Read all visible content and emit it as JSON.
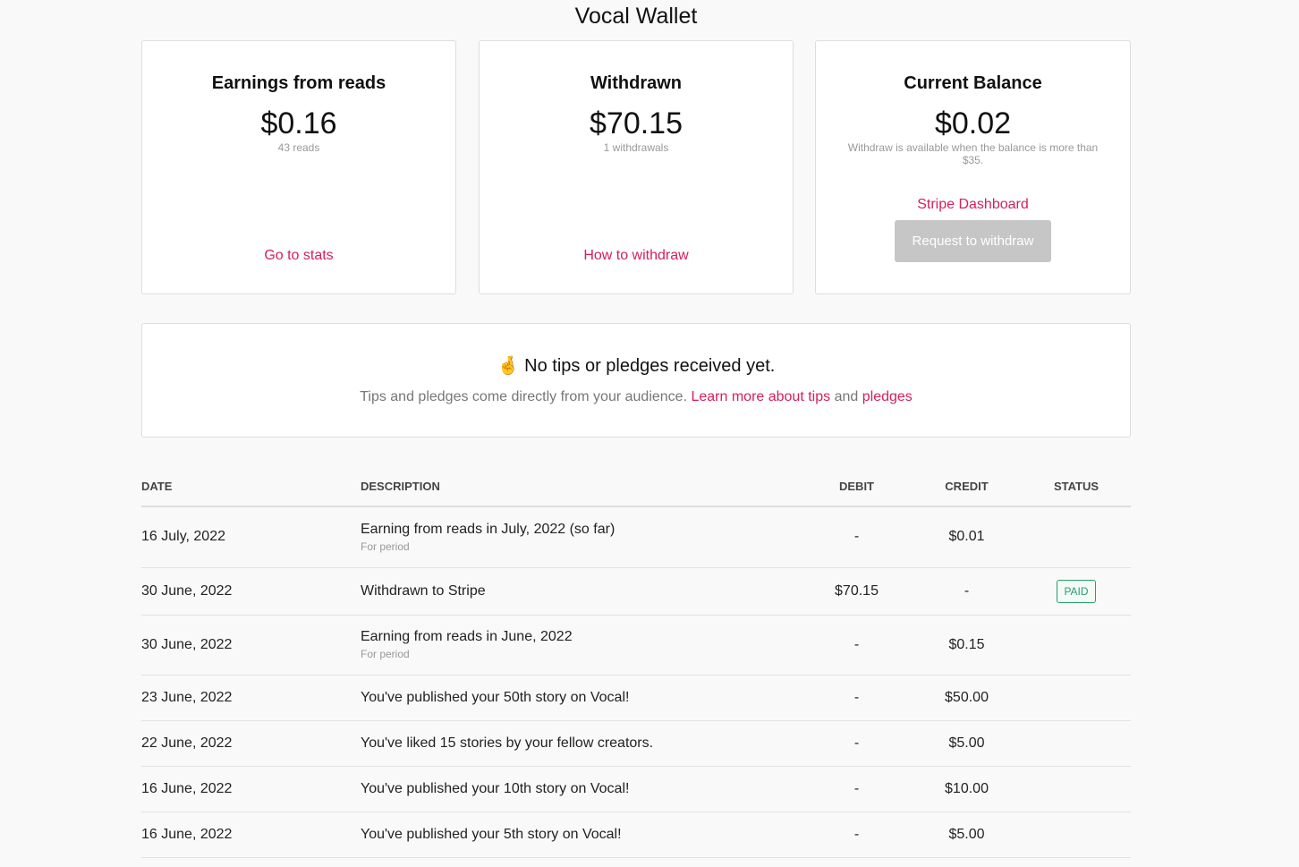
{
  "title": "Vocal Wallet",
  "cards": [
    {
      "title": "Earnings from reads",
      "amount": "$0.16",
      "sub": "43 reads",
      "link": "Go to stats"
    },
    {
      "title": "Withdrawn",
      "amount": "$70.15",
      "sub": "1 withdrawals",
      "link": "How to withdraw"
    },
    {
      "title": "Current Balance",
      "amount": "$0.02",
      "sub": "Withdraw is available when the balance is more than $35.",
      "link": "Stripe Dashboard",
      "button": "Request to withdraw"
    }
  ],
  "tips": {
    "icon": "crossed-fingers",
    "heading": "No tips or pledges received yet.",
    "text": "Tips and pledges come directly from your audience.",
    "link1": "Learn more about tips",
    "and": "and",
    "link2": "pledges"
  },
  "colors": {
    "accent": "#d4205c",
    "paid": "#2a9d6a"
  },
  "table": {
    "headers": [
      "DATE",
      "DESCRIPTION",
      "DEBIT",
      "CREDIT",
      "STATUS"
    ],
    "rows": [
      {
        "date": "16 July, 2022",
        "desc": "Earning from reads in July, 2022 (so far)",
        "note": "For period",
        "debit": "-",
        "credit": "$0.01",
        "status": ""
      },
      {
        "date": "30 June, 2022",
        "desc": "Withdrawn to Stripe",
        "note": "",
        "debit": "$70.15",
        "credit": "-",
        "status": "PAID"
      },
      {
        "date": "30 June, 2022",
        "desc": "Earning from reads in June, 2022",
        "note": "For period",
        "debit": "-",
        "credit": "$0.15",
        "status": ""
      },
      {
        "date": "23 June, 2022",
        "desc": "You've published your 50th story on Vocal!",
        "note": "",
        "debit": "-",
        "credit": "$50.00",
        "status": ""
      },
      {
        "date": "22 June, 2022",
        "desc": "You've liked 15 stories by your fellow creators.",
        "note": "",
        "debit": "-",
        "credit": "$5.00",
        "status": ""
      },
      {
        "date": "16 June, 2022",
        "desc": "You've published your 10th story on Vocal!",
        "note": "",
        "debit": "-",
        "credit": "$10.00",
        "status": ""
      },
      {
        "date": "16 June, 2022",
        "desc": "You've published your 5th story on Vocal!",
        "note": "",
        "debit": "-",
        "credit": "$5.00",
        "status": ""
      }
    ]
  }
}
